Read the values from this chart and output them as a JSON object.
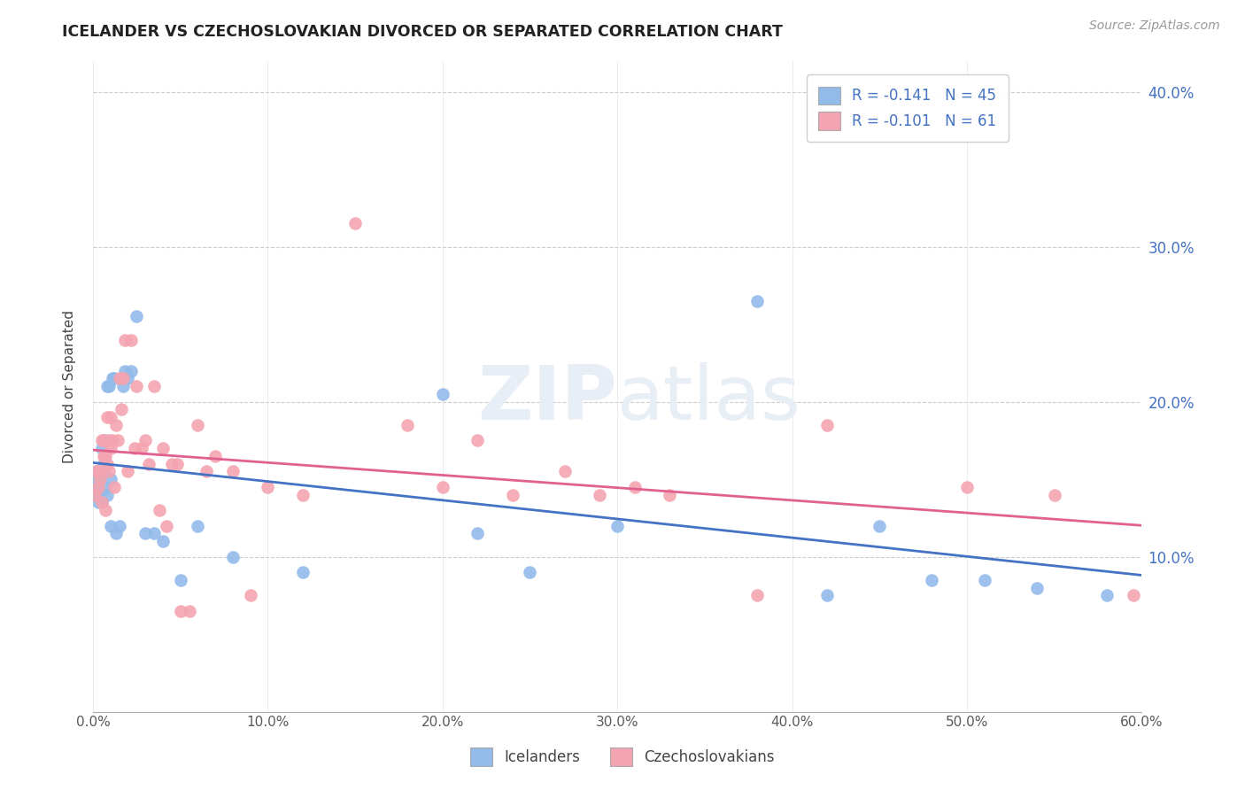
{
  "title": "ICELANDER VS CZECHOSLOVAKIAN DIVORCED OR SEPARATED CORRELATION CHART",
  "source": "Source: ZipAtlas.com",
  "ylabel": "Divorced or Separated",
  "xlabel": "",
  "xlim": [
    0.0,
    0.6
  ],
  "ylim": [
    0.0,
    0.42
  ],
  "xtick_labels": [
    "0.0%",
    "",
    "10.0%",
    "",
    "20.0%",
    "",
    "30.0%",
    "",
    "40.0%",
    "",
    "50.0%",
    "",
    "60.0%"
  ],
  "xtick_vals": [
    0.0,
    0.05,
    0.1,
    0.15,
    0.2,
    0.25,
    0.3,
    0.35,
    0.4,
    0.45,
    0.5,
    0.55,
    0.6
  ],
  "ytick_labels": [
    "10.0%",
    "20.0%",
    "30.0%",
    "40.0%"
  ],
  "ytick_vals": [
    0.1,
    0.2,
    0.3,
    0.4
  ],
  "color_icelander": "#92BBEA",
  "color_czech": "#F4A4B0",
  "legend_r_icelander": "R = -0.141",
  "legend_n_icelander": "N = 45",
  "legend_r_czech": "R = -0.101",
  "legend_n_czech": "N = 61",
  "line_color_icelander": "#4472C4",
  "line_color_czech": "#E06090",
  "icelanders_x": [
    0.001,
    0.002,
    0.002,
    0.003,
    0.003,
    0.004,
    0.004,
    0.005,
    0.005,
    0.006,
    0.006,
    0.007,
    0.007,
    0.008,
    0.008,
    0.009,
    0.01,
    0.01,
    0.011,
    0.012,
    0.013,
    0.015,
    0.017,
    0.018,
    0.02,
    0.022,
    0.025,
    0.03,
    0.035,
    0.04,
    0.05,
    0.06,
    0.08,
    0.12,
    0.2,
    0.22,
    0.25,
    0.3,
    0.38,
    0.42,
    0.45,
    0.48,
    0.51,
    0.54,
    0.58
  ],
  "icelanders_y": [
    0.14,
    0.145,
    0.155,
    0.135,
    0.15,
    0.14,
    0.155,
    0.135,
    0.17,
    0.16,
    0.155,
    0.145,
    0.175,
    0.14,
    0.21,
    0.21,
    0.12,
    0.15,
    0.215,
    0.215,
    0.115,
    0.12,
    0.21,
    0.22,
    0.215,
    0.22,
    0.255,
    0.115,
    0.115,
    0.11,
    0.085,
    0.12,
    0.1,
    0.09,
    0.205,
    0.115,
    0.09,
    0.12,
    0.265,
    0.075,
    0.12,
    0.085,
    0.085,
    0.08,
    0.075
  ],
  "czechoslovakians_x": [
    0.001,
    0.002,
    0.003,
    0.003,
    0.004,
    0.005,
    0.005,
    0.006,
    0.006,
    0.007,
    0.007,
    0.008,
    0.008,
    0.009,
    0.009,
    0.01,
    0.01,
    0.011,
    0.012,
    0.013,
    0.014,
    0.015,
    0.016,
    0.017,
    0.018,
    0.02,
    0.022,
    0.024,
    0.025,
    0.028,
    0.03,
    0.032,
    0.035,
    0.038,
    0.04,
    0.042,
    0.045,
    0.048,
    0.05,
    0.055,
    0.06,
    0.065,
    0.07,
    0.08,
    0.09,
    0.1,
    0.12,
    0.15,
    0.18,
    0.2,
    0.22,
    0.24,
    0.27,
    0.29,
    0.31,
    0.33,
    0.38,
    0.42,
    0.5,
    0.55,
    0.595
  ],
  "czechoslovakians_y": [
    0.14,
    0.155,
    0.145,
    0.155,
    0.15,
    0.135,
    0.175,
    0.165,
    0.175,
    0.13,
    0.165,
    0.16,
    0.19,
    0.175,
    0.155,
    0.17,
    0.19,
    0.175,
    0.145,
    0.185,
    0.175,
    0.215,
    0.195,
    0.215,
    0.24,
    0.155,
    0.24,
    0.17,
    0.21,
    0.17,
    0.175,
    0.16,
    0.21,
    0.13,
    0.17,
    0.12,
    0.16,
    0.16,
    0.065,
    0.065,
    0.185,
    0.155,
    0.165,
    0.155,
    0.075,
    0.145,
    0.14,
    0.315,
    0.185,
    0.145,
    0.175,
    0.14,
    0.155,
    0.14,
    0.145,
    0.14,
    0.075,
    0.185,
    0.145,
    0.14,
    0.075
  ]
}
